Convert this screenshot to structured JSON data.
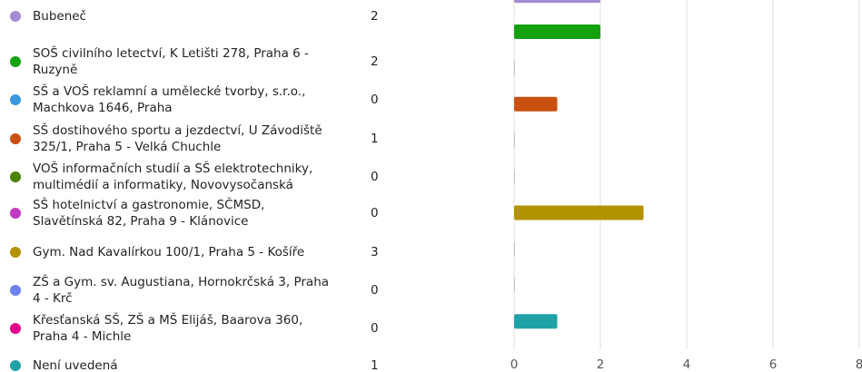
{
  "chart_data": {
    "type": "bar",
    "categories": [
      "Bubeneč",
      "SOŠ civilního letectví, K Letišti 278, Praha 6 - Ruzyně",
      "SŠ a VOŠ reklamní a umělecké tvorby, s.r.o., Machkova 1646, Praha",
      "SŠ dostihového sportu a jezdectví, U Závodiště 325/1, Praha 5 - Velká Chuchle",
      "VOŠ informačních studií a SŠ elektrotechniky, multimédií a informatiky, Novovysočanská",
      "SŠ hotelnictví a gastronomie, SČMSD, Slavětínská 82, Praha 9 - Klánovice",
      "Gym. Nad Kavalírkou 100/1, Praha 5 - Košíře",
      "ZŠ a Gym. sv. Augustiana, Hornokrčská 3, Praha 4 - Krč",
      "Křesťanská SŠ, ZŠ a MŠ Elijáš, Baarova 360, Praha 4 - Michle",
      "Není uvedená"
    ],
    "values": [
      2,
      2,
      0,
      1,
      0,
      0,
      3,
      0,
      0,
      1
    ],
    "colors": [
      "#a58bd2",
      "#13a10e",
      "#3a96dd",
      "#ca5010",
      "#498205",
      "#c239c3",
      "#b39200",
      "#6b82f0",
      "#e3008c",
      "#1fa2a6"
    ],
    "xlim": [
      0,
      8
    ],
    "xticks": [
      0,
      2,
      4,
      6,
      8
    ],
    "grid": true
  }
}
